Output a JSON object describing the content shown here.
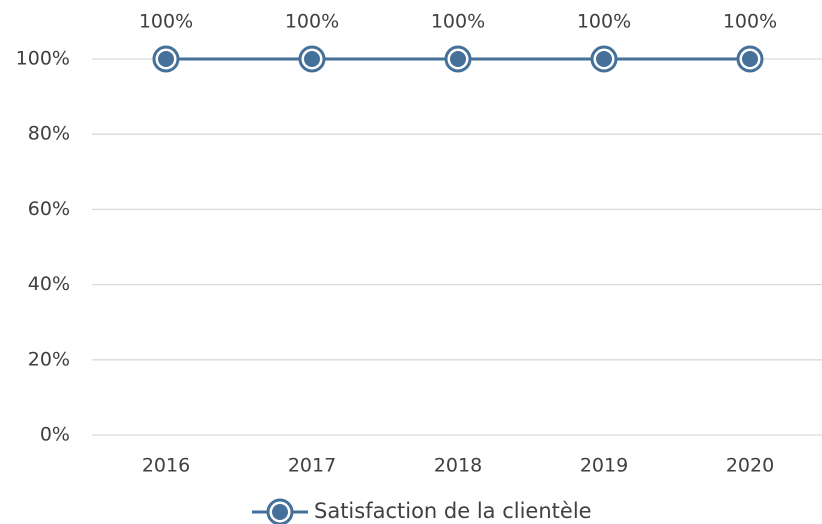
{
  "chart_data": {
    "type": "line",
    "categories": [
      "2016",
      "2017",
      "2018",
      "2019",
      "2020"
    ],
    "series": [
      {
        "name": "Satisfaction de la clientèle",
        "color": "#44709a",
        "values": [
          100,
          100,
          100,
          100,
          100
        ],
        "value_labels": [
          "100%",
          "100%",
          "100%",
          "100%",
          "100%"
        ]
      }
    ],
    "ylim": [
      0,
      100
    ],
    "yticks": [
      {
        "value": 0,
        "label": "0%"
      },
      {
        "value": 20,
        "label": "20%"
      },
      {
        "value": 40,
        "label": "40%"
      },
      {
        "value": 60,
        "label": "60%"
      },
      {
        "value": 80,
        "label": "80%"
      },
      {
        "value": 100,
        "label": "100%"
      }
    ],
    "grid": true,
    "legend": "bottom"
  }
}
